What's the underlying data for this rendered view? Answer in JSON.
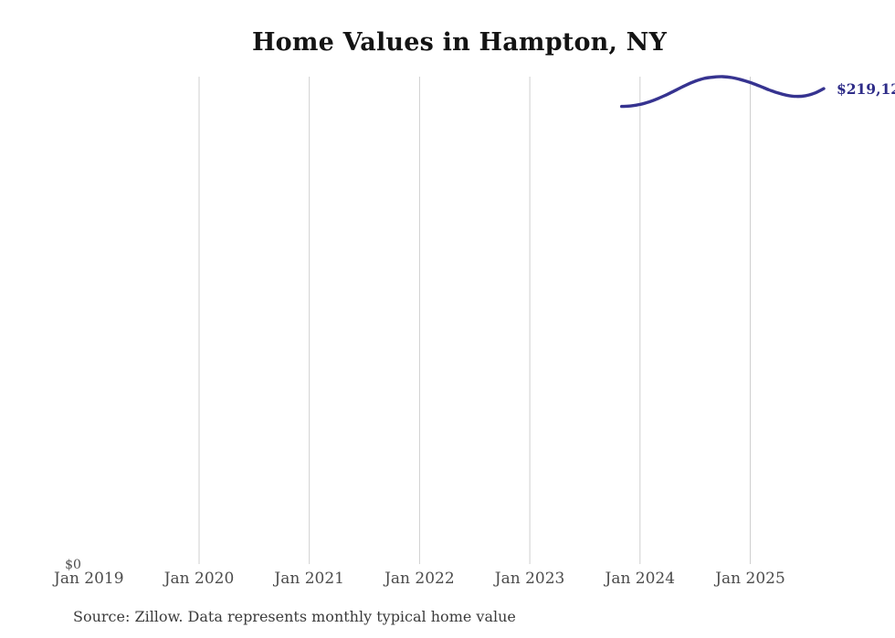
{
  "title": "Home Values in Hampton, NY",
  "source_note": "Source: Zillow. Data represents monthly typical home value",
  "colors": {
    "line": "#363390",
    "end_label": "#2e2c88",
    "gridline": "#cfcfcf",
    "axis_text": "#4c4c4c",
    "title_text": "#141414",
    "source_text": "#3b3b3b",
    "background": "#ffffff"
  },
  "chart_data": {
    "type": "line",
    "title": "Home Values in Hampton, NY",
    "unit": "USD",
    "grid": "vertical-only",
    "legend": "none",
    "ylim": [
      0,
      224600
    ],
    "y_tick_zero_label": "$0",
    "end_label": "$219,12",
    "x_ticks": [
      {
        "label": "Jan 2019",
        "year": 2019,
        "gridline": false
      },
      {
        "label": "Jan 2020",
        "year": 2020,
        "gridline": true
      },
      {
        "label": "Jan 2021",
        "year": 2021,
        "gridline": true
      },
      {
        "label": "Jan 2022",
        "year": 2022,
        "gridline": true
      },
      {
        "label": "Jan 2023",
        "year": 2023,
        "gridline": true
      },
      {
        "label": "Jan 2024",
        "year": 2024,
        "gridline": true
      },
      {
        "label": "Jan 2025",
        "year": 2025,
        "gridline": true
      }
    ],
    "x": [
      "2023-11",
      "2023-12",
      "2024-01",
      "2024-02",
      "2024-03",
      "2024-04",
      "2024-05",
      "2024-06",
      "2024-07",
      "2024-08",
      "2024-09",
      "2024-10",
      "2024-11",
      "2024-12",
      "2025-01",
      "2025-02",
      "2025-03",
      "2025-04",
      "2025-05",
      "2025-06",
      "2025-07",
      "2025-08",
      "2025-09"
    ],
    "values": [
      210900,
      211100,
      211800,
      213000,
      214600,
      216500,
      218600,
      220700,
      222500,
      223800,
      224400,
      224600,
      224200,
      223200,
      221900,
      220300,
      218600,
      217100,
      216000,
      215500,
      215800,
      217000,
      219100
    ]
  }
}
